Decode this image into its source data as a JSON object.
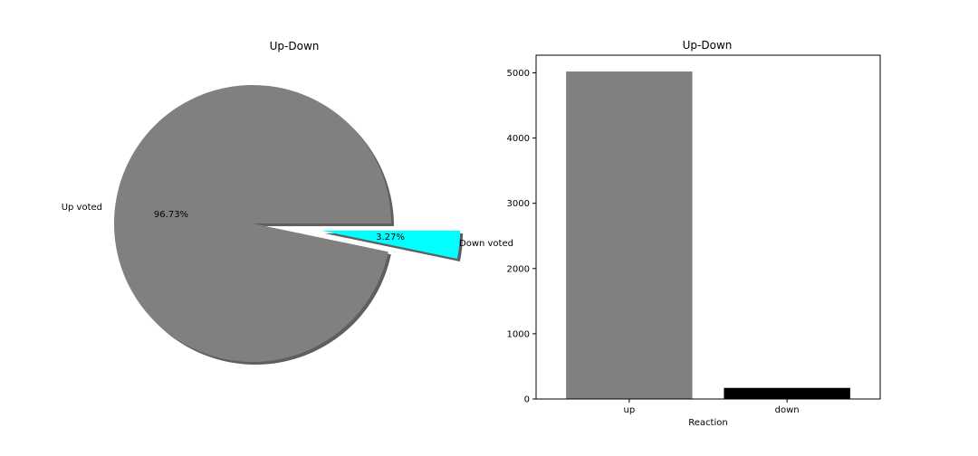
{
  "chart_data": [
    {
      "type": "pie",
      "title": "Up-Down",
      "labels": [
        "Up voted",
        "Down voted"
      ],
      "values": [
        96.73,
        3.27
      ],
      "value_labels": [
        "96.73%",
        "3.27%"
      ],
      "colors": [
        "#808080",
        "#00ffff"
      ],
      "explode": [
        0,
        1
      ],
      "shadow": true
    },
    {
      "type": "bar",
      "title": "Up-Down",
      "categories": [
        "up",
        "down"
      ],
      "values": [
        5020,
        170
      ],
      "colors": [
        "#808080",
        "#000000"
      ],
      "xlabel": "Reaction",
      "ylabel": "",
      "ylim": [
        0,
        5270
      ],
      "yticks": [
        0,
        1000,
        2000,
        3000,
        4000,
        5000
      ],
      "grid": false
    }
  ]
}
